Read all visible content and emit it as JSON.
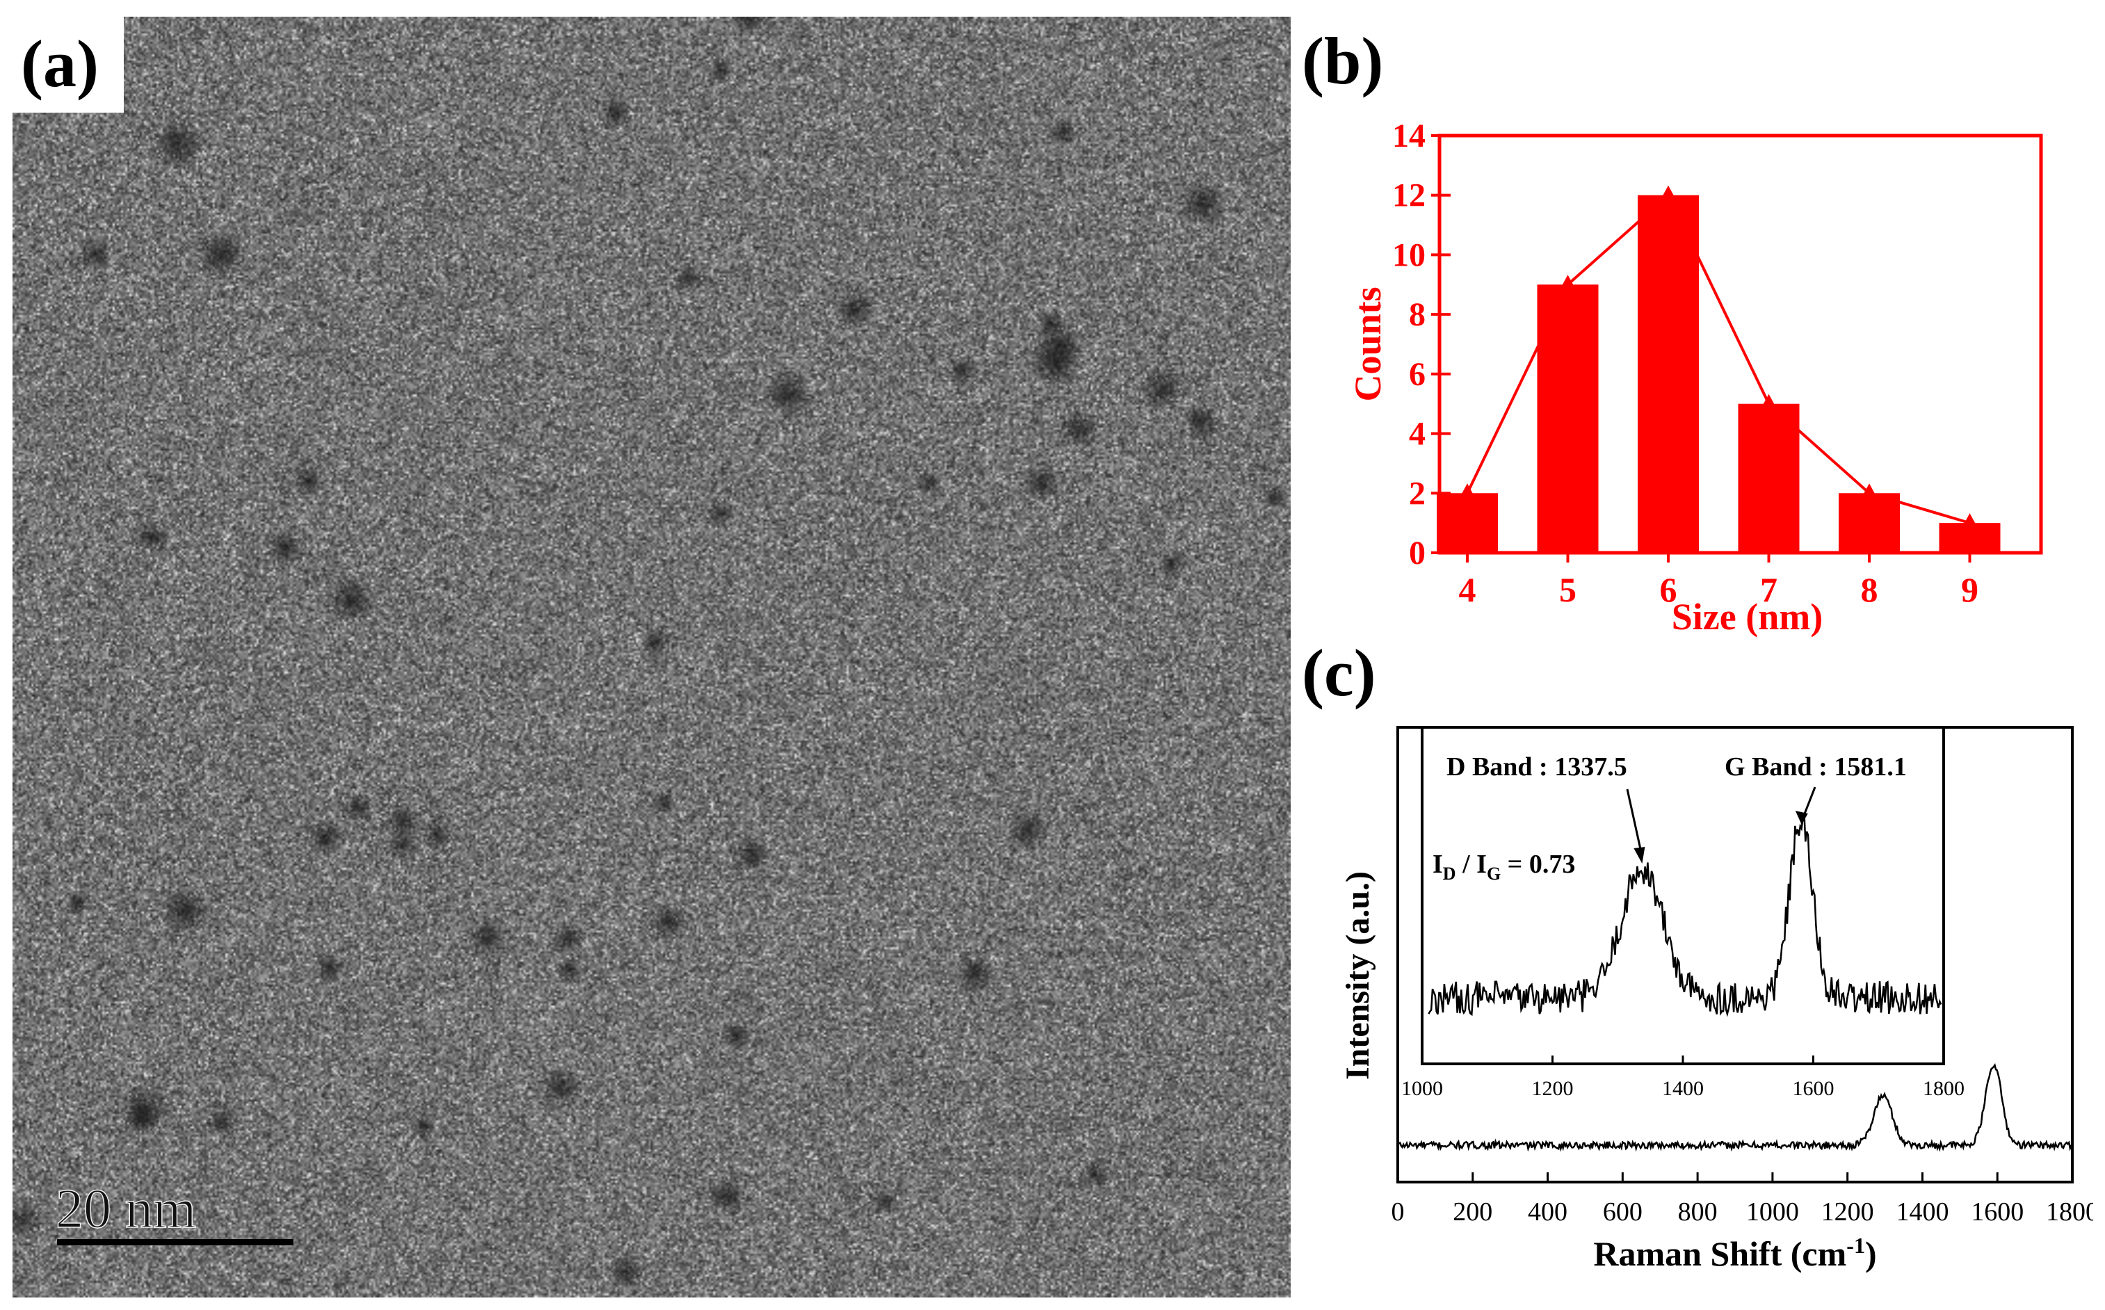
{
  "figure": {
    "panel_a": {
      "label": "(a)",
      "scale_bar_text": "20 nm"
    },
    "panel_b": {
      "label": "(b)"
    },
    "panel_c": {
      "label": "(c)"
    }
  },
  "chart_data": [
    {
      "type": "bar",
      "panel": "(b)",
      "title": "",
      "xlabel": "Size (nm)",
      "ylabel": "Counts",
      "categories": [
        "4",
        "5",
        "6",
        "7",
        "8",
        "9"
      ],
      "values": [
        2,
        9,
        12,
        5,
        2,
        1
      ],
      "overlay_line": true,
      "ylim": [
        0,
        14
      ],
      "yticks": [
        "0",
        "2",
        "4",
        "6",
        "8",
        "10",
        "12",
        "14"
      ],
      "color": "#ff0000"
    },
    {
      "type": "line",
      "panel": "(c)",
      "xlabel": "Raman Shift (cm",
      "xlabel_sup": "-1",
      "xlabel_close": ")",
      "ylabel": "Intensity (a.u.)",
      "xlim": [
        0,
        1800
      ],
      "xticks": [
        "0",
        "200",
        "400",
        "600",
        "800",
        "1000",
        "1200",
        "1400",
        "1600",
        "1800"
      ],
      "peaks": [
        {
          "x": 1295,
          "height": 0.55,
          "width": 35
        },
        {
          "x": 1590,
          "height": 0.9,
          "width": 30
        }
      ],
      "inset": {
        "xlim": [
          1000,
          1800
        ],
        "xticks": [
          "1000",
          "1200",
          "1400",
          "1600",
          "1800"
        ],
        "peaks": [
          {
            "x": 1337.5,
            "height": 0.62,
            "width": 45
          },
          {
            "x": 1581.1,
            "height": 0.85,
            "width": 25
          }
        ],
        "annotations": {
          "d_band": "D Band : 1337.5",
          "g_band": "G Band : 1581.1",
          "ratio_main": "I",
          "ratio_sub1": "D",
          "ratio_mid": " / I",
          "ratio_sub2": "G",
          "ratio_tail": " = 0.73"
        }
      }
    }
  ]
}
